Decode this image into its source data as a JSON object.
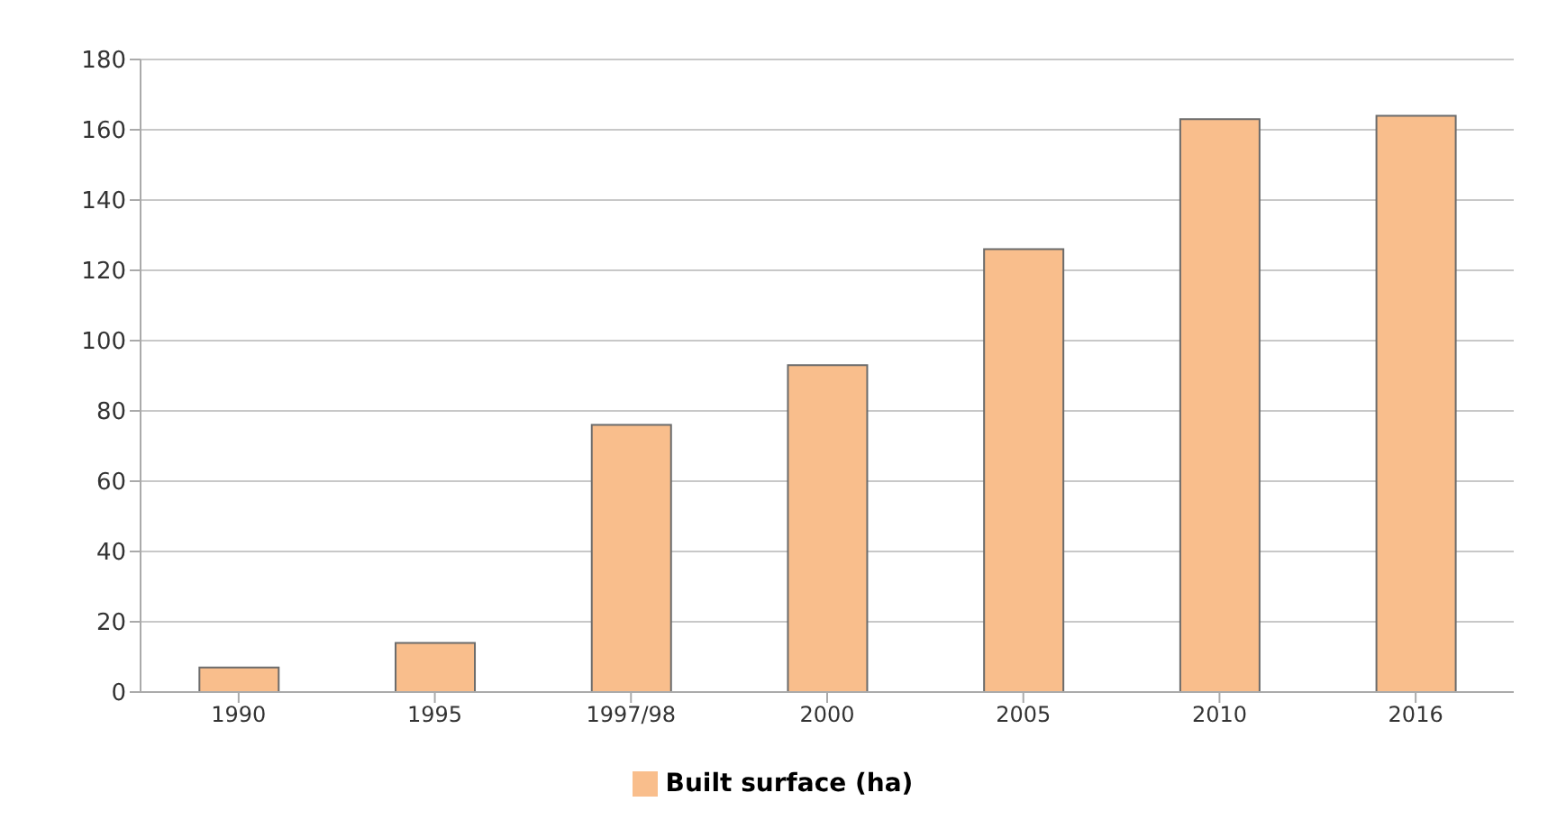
{
  "chart_data": {
    "type": "bar",
    "categories": [
      "1990",
      "1995",
      "1997/98",
      "2000",
      "2005",
      "2010",
      "2016"
    ],
    "series": [
      {
        "name": "Built surface (ha)",
        "color": "#f9be8c",
        "values": [
          7,
          14,
          76,
          93,
          126,
          163,
          164
        ]
      }
    ],
    "ylim": [
      0,
      180
    ],
    "yticks": [
      0,
      20,
      40,
      60,
      80,
      100,
      120,
      140,
      160,
      180
    ],
    "grid": "y",
    "legend": "bottom"
  }
}
